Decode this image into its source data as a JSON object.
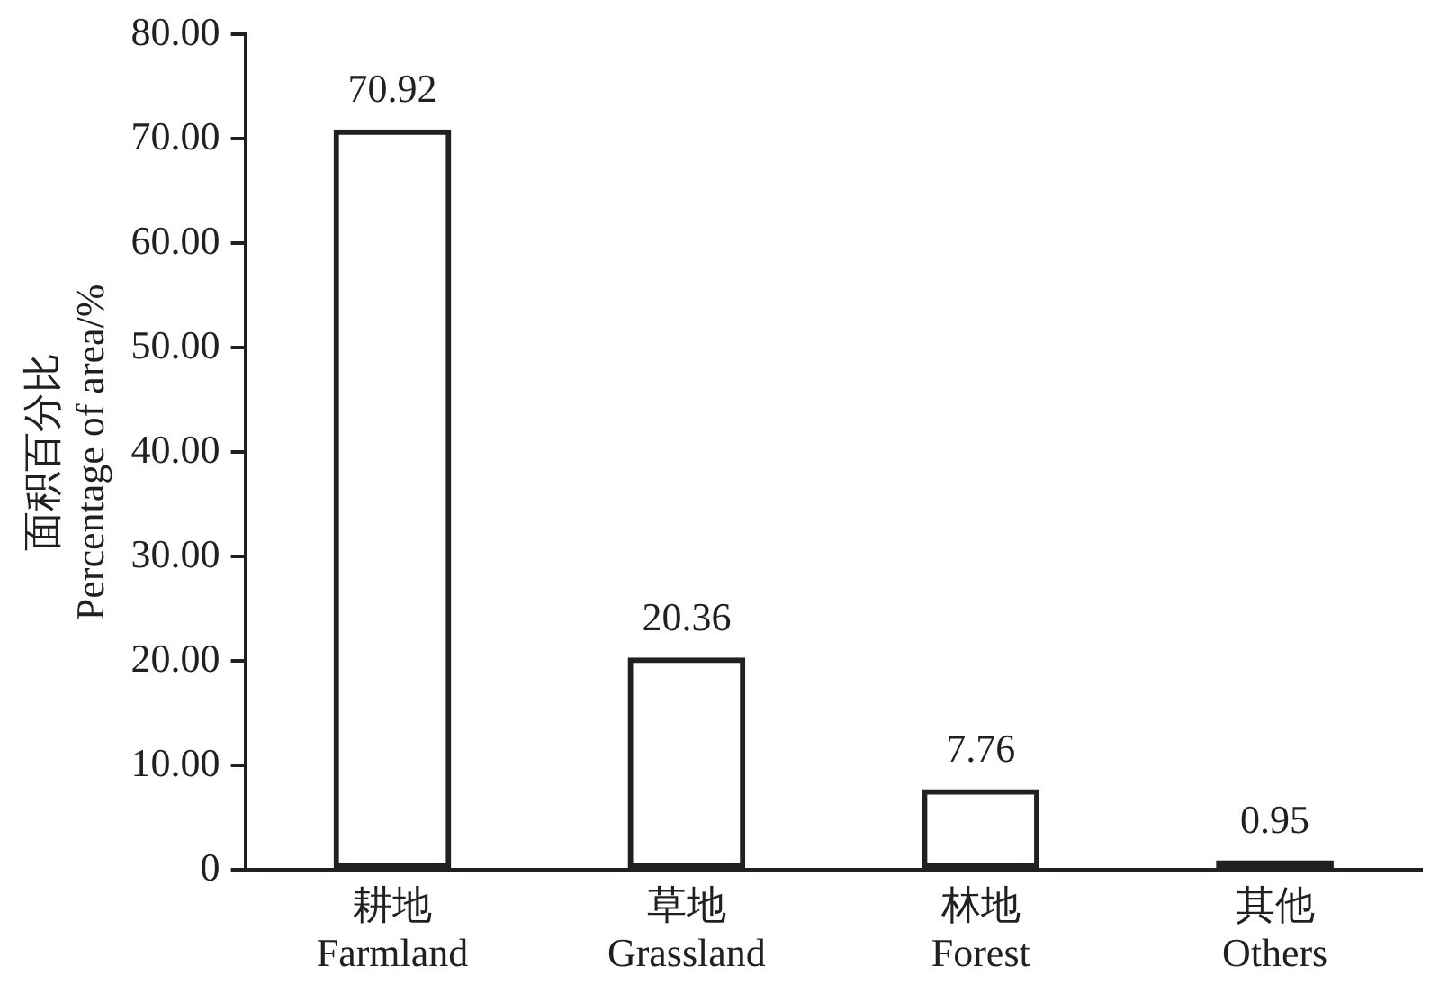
{
  "chart_data": {
    "type": "bar",
    "ylabel": "面积百分比\nPercentage of area/%",
    "categories": [
      "耕地\nFarmland",
      "草地\nGrassland",
      "林地\nForest",
      "其他\nOthers"
    ],
    "values": [
      70.92,
      20.36,
      7.76,
      0.95
    ],
    "color": "#231f20",
    "ylim": [
      0,
      80
    ],
    "yticks": [
      {
        "value": 0,
        "label": "0"
      },
      {
        "value": 10,
        "label": "10.00"
      },
      {
        "value": 20,
        "label": "20.00"
      },
      {
        "value": 30,
        "label": "30.00"
      },
      {
        "value": 40,
        "label": "40.00"
      },
      {
        "value": 50,
        "label": "50.00"
      },
      {
        "value": 60,
        "label": "60.00"
      },
      {
        "value": 70,
        "label": "70.00"
      },
      {
        "value": 80,
        "label": "80.00"
      }
    ],
    "grid": false,
    "legend": false,
    "data_labels": true
  }
}
